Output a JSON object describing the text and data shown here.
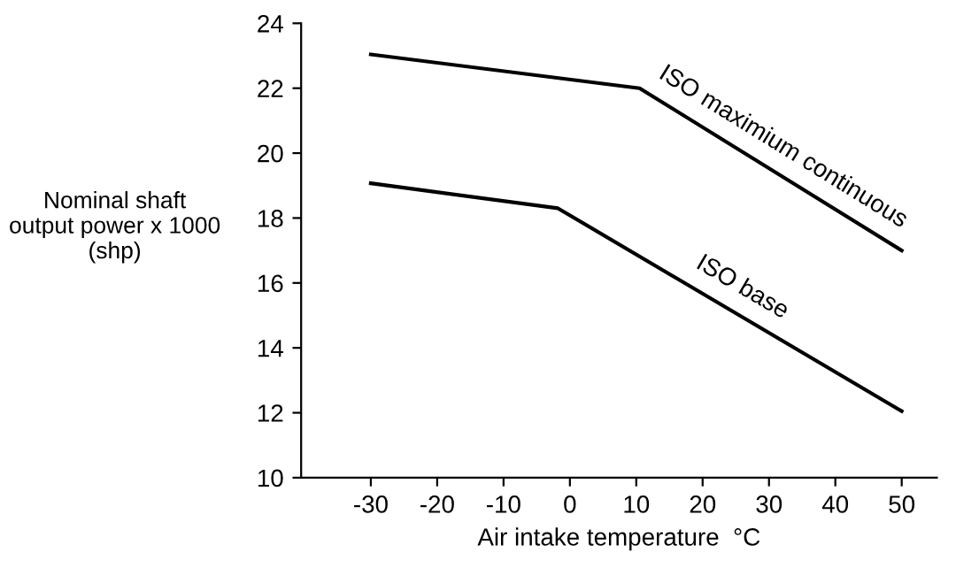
{
  "chart_data": {
    "type": "line",
    "xlabel": "Air intake temperature  °C",
    "ylabel": "Nominal shaft\noutput power x 1000\n(shp)",
    "series": [
      {
        "name": "ISO maximium continuous",
        "x": [
          -30,
          10.5,
          50
        ],
        "values": [
          23.04,
          22.0,
          17.0
        ],
        "color": "#000000"
      },
      {
        "name": "ISO base",
        "x": [
          -30,
          -1.8,
          50
        ],
        "values": [
          19.07,
          18.3,
          12.05
        ],
        "color": "#000000"
      }
    ],
    "xlim": [
      -40.5,
      55.3
    ],
    "ylim": [
      10,
      24
    ],
    "xticks": [
      -30,
      -20,
      -10,
      0,
      10,
      20,
      30,
      40,
      50
    ],
    "yticks": [
      10,
      12,
      14,
      16,
      18,
      20,
      22,
      24
    ],
    "grid": false,
    "legend": false,
    "marker": "none",
    "line_style": "solid"
  }
}
